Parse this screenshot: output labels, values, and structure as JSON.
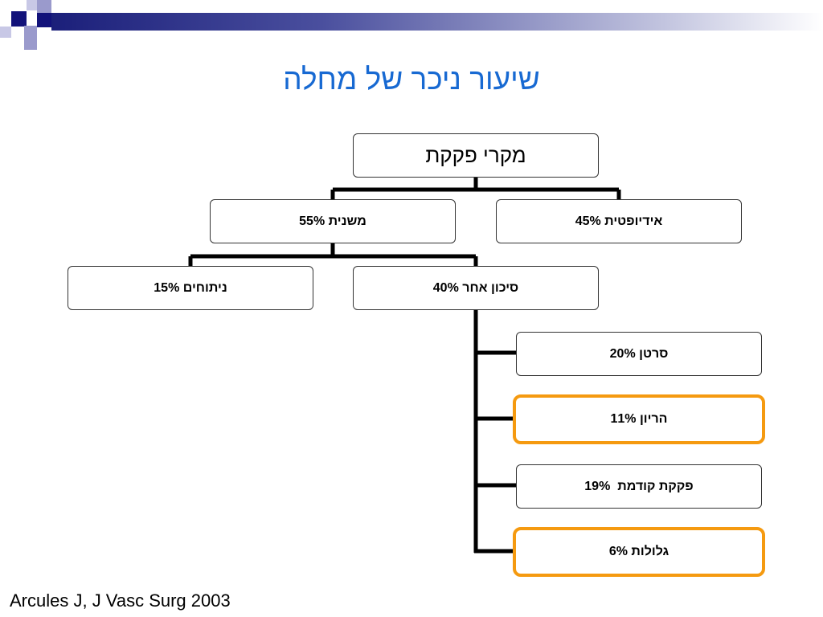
{
  "title": "שיעור ניכר של מחלה",
  "citation": "Arcules J, J Vasc Surg 2003",
  "colors": {
    "title": "#1769d2",
    "highlight_border": "#f59a10",
    "bar_dark": "#1b1f7a",
    "connector": "#000000"
  },
  "tree": {
    "root": "מקרי פקקת",
    "secondary": "משנית 55%",
    "idiopathic": "אידיופטית 45%",
    "surgery": "ניתוחים 15%",
    "other_risk": "סיכון אחר 40%",
    "cancer": "סרטן 20%",
    "pregnancy": "הריון 11%",
    "previous_thrombosis": "פקקת קודמת  19%",
    "pills": "גלולות 6%"
  }
}
